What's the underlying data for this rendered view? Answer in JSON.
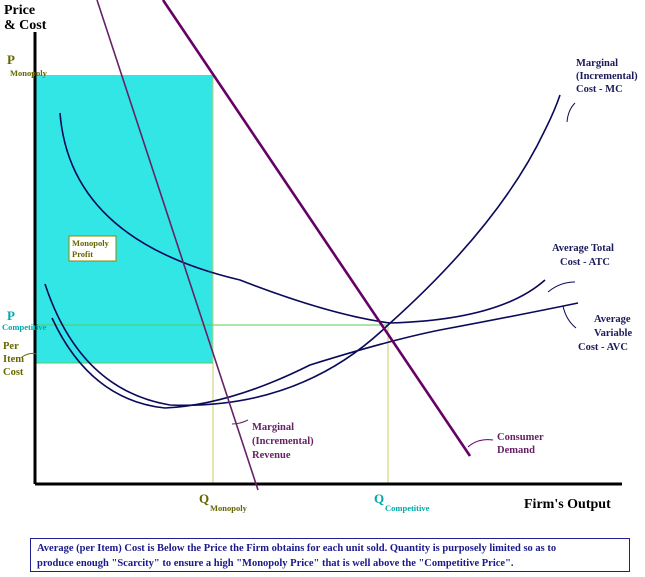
{
  "axes": {
    "y_title_line1": "Price",
    "y_title_line2": "& Cost",
    "x_title": "Firm's Output"
  },
  "y_labels": {
    "p_monopoly_main": "P",
    "p_monopoly_sub": "Monopoly",
    "p_competitive_main": "P",
    "p_competitive_sub": "Competitive",
    "per_item_line1": "Per",
    "per_item_line2": "Item",
    "per_item_line3": "Cost"
  },
  "x_labels": {
    "q_monopoly_main": "Q",
    "q_monopoly_sub": "Monopoly",
    "q_competitive_main": "Q",
    "q_competitive_sub": "Competitive"
  },
  "profit_box": {
    "line1": "Monopoly",
    "line2": "Profit"
  },
  "curve_labels": {
    "mc_line1": "Marginal",
    "mc_line2": "(Incremental)",
    "mc_line3": "Cost - MC",
    "atc_line1": "Average Total",
    "atc_line2": "Cost - ATC",
    "avc_line1": "Average",
    "avc_line2": "Variable",
    "avc_line3": "Cost - AVC",
    "mr_line1": "Marginal",
    "mr_line2": "(Incremental)",
    "mr_line3": "Revenue",
    "demand_line1": "Consumer",
    "demand_line2": "Demand"
  },
  "caption": {
    "line1": "Average (per Item) Cost is Below the Price the Firm obtains for each unit sold.  Quantity is purposely limited so as to",
    "line2": "produce enough \"Scarcity\" to ensure a high \"Monopoly Price\" that is well above the \"Competitive Price\"."
  },
  "colors": {
    "profit_fill": "#33e6e6",
    "demand": "#660066",
    "mr": "#662266",
    "cost_curves": "#0a0a5a",
    "guide_green": "#33cc33",
    "guide_olive": "#cccc66",
    "label_olive": "#666600",
    "label_teal": "#00aaaa",
    "label_navy": "#1a1a5a"
  }
}
